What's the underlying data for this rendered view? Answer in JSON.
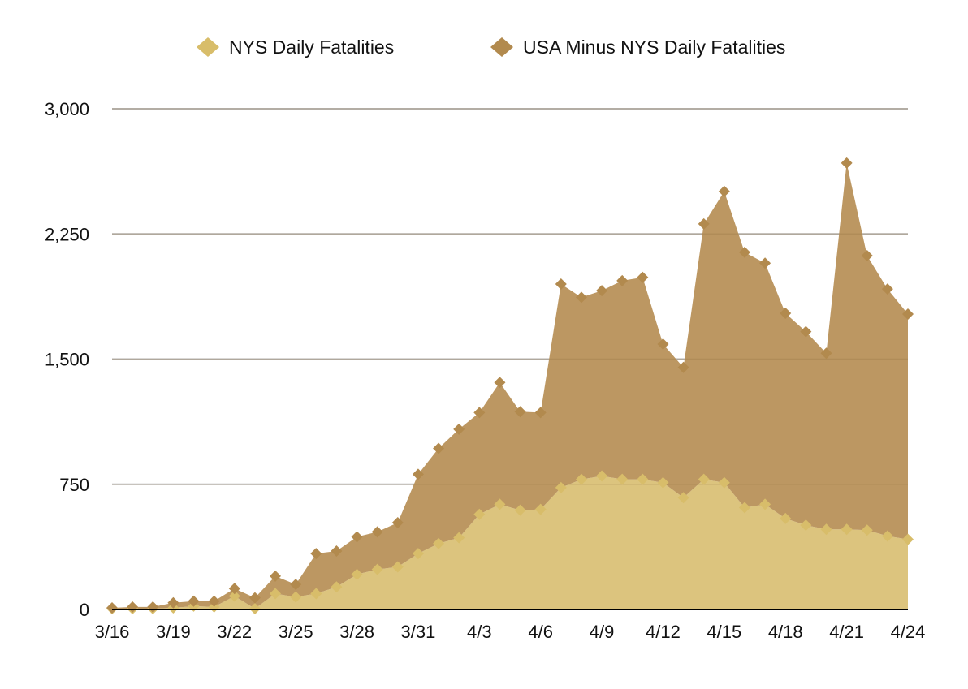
{
  "chart_data": {
    "type": "area",
    "stacked": true,
    "title": "",
    "xlabel": "",
    "ylabel": "",
    "ylim": [
      0,
      3000
    ],
    "yticks": [
      0,
      750,
      1500,
      2250,
      3000
    ],
    "ytick_labels": [
      "0",
      "750",
      "1,500",
      "2,250",
      "3,000"
    ],
    "grid": true,
    "legend_position": "top",
    "marker": "diamond",
    "x": [
      "3/16",
      "3/17",
      "3/18",
      "3/19",
      "3/20",
      "3/21",
      "3/22",
      "3/23",
      "3/24",
      "3/25",
      "3/26",
      "3/27",
      "3/28",
      "3/29",
      "3/30",
      "3/31",
      "4/1",
      "4/2",
      "4/3",
      "4/4",
      "4/5",
      "4/6",
      "4/7",
      "4/8",
      "4/9",
      "4/10",
      "4/11",
      "4/12",
      "4/13",
      "4/14",
      "4/15",
      "4/16",
      "4/17",
      "4/18",
      "4/19",
      "4/20",
      "4/21",
      "4/22",
      "4/23",
      "4/24"
    ],
    "xtick_labels": [
      "3/16",
      "3/19",
      "3/22",
      "3/25",
      "3/28",
      "3/31",
      "4/3",
      "4/6",
      "4/9",
      "4/12",
      "4/15",
      "4/18",
      "4/21",
      "4/24"
    ],
    "series": [
      {
        "name": "NYS Daily Fatalities",
        "color": "#dcc47e",
        "marker_color": "#d8bd6a",
        "values": [
          5,
          5,
          5,
          10,
          20,
          15,
          80,
          5,
          95,
          75,
          95,
          135,
          210,
          240,
          255,
          335,
          395,
          430,
          570,
          630,
          595,
          600,
          730,
          780,
          800,
          780,
          780,
          760,
          670,
          780,
          760,
          610,
          630,
          545,
          505,
          480,
          480,
          475,
          440,
          420
        ]
      },
      {
        "name": "USA Minus NYS Daily Fatalities",
        "color": "#bc9762",
        "marker_color": "#b28a4e",
        "values": [
          5,
          10,
          10,
          30,
          30,
          35,
          45,
          65,
          105,
          75,
          240,
          215,
          225,
          225,
          265,
          475,
          570,
          650,
          610,
          730,
          590,
          580,
          1220,
          1090,
          1110,
          1190,
          1210,
          830,
          780,
          1530,
          1745,
          1530,
          1445,
          1230,
          1160,
          1055,
          2195,
          1645,
          1480,
          1350
        ]
      }
    ]
  }
}
